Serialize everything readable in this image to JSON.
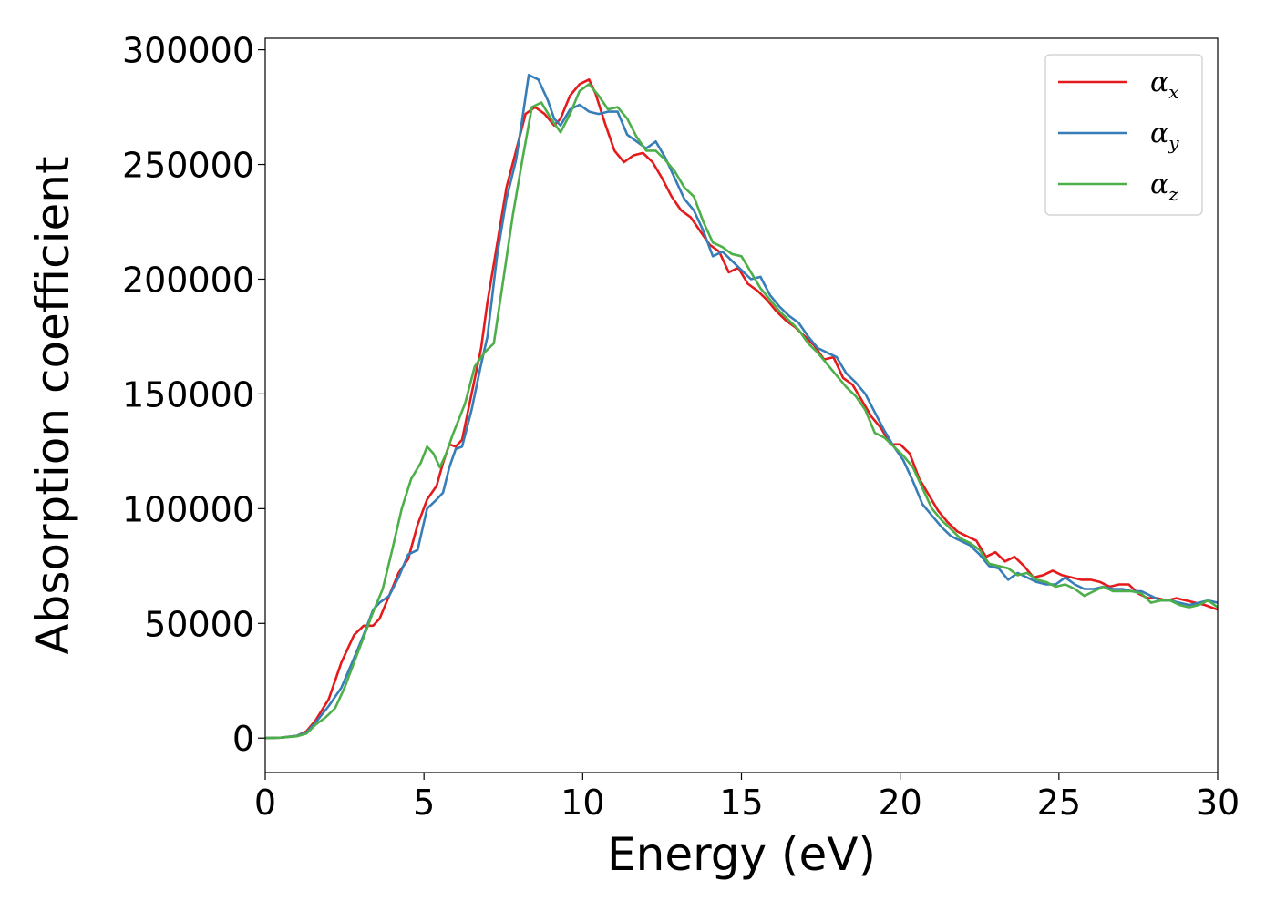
{
  "chart_data": {
    "type": "line",
    "title": "",
    "xlabel": "Energy (eV)",
    "ylabel": "Absorption coefficient",
    "xlim": [
      0,
      30
    ],
    "ylim": [
      -15000,
      305000
    ],
    "xticks": [
      0,
      5,
      10,
      15,
      20,
      25,
      30
    ],
    "xtick_labels": [
      "0",
      "5",
      "10",
      "15",
      "20",
      "25",
      "30"
    ],
    "yticks": [
      0,
      50000,
      100000,
      150000,
      200000,
      250000,
      300000
    ],
    "ytick_labels": [
      "0",
      "50000",
      "100000",
      "150000",
      "200000",
      "250000",
      "300000"
    ],
    "grid": false,
    "legend_position": "top-right",
    "series": [
      {
        "name": "α",
        "subscript": "x",
        "color": "#e41a1c",
        "x": [
          0,
          0.5,
          1.0,
          1.3,
          1.6,
          2.0,
          2.4,
          2.8,
          3.1,
          3.4,
          3.6,
          3.9,
          4.2,
          4.5,
          4.8,
          5.1,
          5.4,
          5.6,
          5.8,
          6.0,
          6.2,
          6.5,
          6.8,
          7.0,
          7.3,
          7.6,
          7.9,
          8.2,
          8.5,
          8.8,
          9.1,
          9.3,
          9.6,
          9.9,
          10.2,
          10.4,
          10.7,
          11.0,
          11.3,
          11.6,
          11.9,
          12.2,
          12.5,
          12.8,
          13.1,
          13.4,
          13.7,
          14.0,
          14.3,
          14.6,
          14.9,
          15.2,
          15.5,
          15.8,
          16.1,
          16.4,
          16.7,
          17.0,
          17.3,
          17.6,
          17.9,
          18.2,
          18.5,
          18.8,
          19.1,
          19.4,
          19.7,
          20.0,
          20.3,
          20.6,
          20.9,
          21.2,
          21.5,
          21.8,
          22.1,
          22.4,
          22.7,
          23.0,
          23.3,
          23.6,
          23.9,
          24.2,
          24.5,
          24.8,
          25.1,
          25.4,
          25.7,
          26.0,
          26.3,
          26.6,
          26.9,
          27.2,
          27.5,
          27.8,
          28.1,
          28.4,
          28.7,
          29.0,
          29.3,
          29.6,
          30.0
        ],
        "y": [
          0,
          200,
          1000,
          3000,
          8000,
          17000,
          33000,
          45000,
          49000,
          49000,
          52000,
          62000,
          72000,
          78000,
          93000,
          104000,
          110000,
          120000,
          128000,
          127000,
          130000,
          150000,
          170000,
          190000,
          215000,
          240000,
          256000,
          272000,
          275000,
          272000,
          267000,
          270000,
          280000,
          285000,
          287000,
          281000,
          268000,
          256000,
          251000,
          254000,
          255000,
          251000,
          244000,
          236000,
          230000,
          227000,
          221000,
          215000,
          212000,
          203000,
          205000,
          198000,
          195000,
          191000,
          186000,
          182000,
          179000,
          175000,
          171000,
          165000,
          166000,
          157000,
          154000,
          147000,
          140000,
          135000,
          128000,
          128000,
          124000,
          113000,
          106000,
          99000,
          94000,
          90000,
          88000,
          86000,
          79000,
          81000,
          77000,
          79000,
          75000,
          70000,
          71000,
          73000,
          71000,
          70000,
          69000,
          69000,
          68000,
          66000,
          67000,
          67000,
          63000,
          61000,
          61000,
          60000,
          61000,
          60000,
          59000,
          58000,
          56000
        ]
      },
      {
        "name": "α",
        "subscript": "y",
        "color": "#377eb8",
        "x": [
          0,
          0.5,
          1.0,
          1.3,
          1.6,
          2.0,
          2.4,
          2.8,
          3.1,
          3.4,
          3.6,
          3.9,
          4.2,
          4.5,
          4.8,
          5.1,
          5.4,
          5.6,
          5.8,
          6.0,
          6.2,
          6.5,
          6.8,
          7.0,
          7.3,
          7.6,
          7.9,
          8.1,
          8.3,
          8.6,
          8.9,
          9.1,
          9.3,
          9.6,
          9.9,
          10.2,
          10.5,
          10.8,
          11.1,
          11.4,
          11.7,
          12.0,
          12.3,
          12.6,
          12.9,
          13.2,
          13.5,
          13.8,
          14.1,
          14.4,
          14.7,
          15.0,
          15.3,
          15.6,
          15.9,
          16.2,
          16.5,
          16.8,
          17.1,
          17.4,
          17.7,
          18.0,
          18.3,
          18.6,
          18.9,
          19.2,
          19.5,
          19.8,
          20.1,
          20.4,
          20.7,
          21.0,
          21.3,
          21.6,
          21.9,
          22.2,
          22.5,
          22.8,
          23.1,
          23.4,
          23.7,
          24.0,
          24.3,
          24.6,
          24.9,
          25.2,
          25.5,
          25.8,
          26.1,
          26.4,
          26.7,
          27.0,
          27.3,
          27.6,
          27.9,
          28.2,
          28.5,
          28.8,
          29.1,
          29.4,
          29.7,
          30.0
        ],
        "y": [
          0,
          200,
          1000,
          2500,
          7000,
          14000,
          22000,
          35000,
          45000,
          56000,
          59000,
          62000,
          70000,
          80000,
          82000,
          100000,
          104000,
          107000,
          118000,
          126000,
          127000,
          143000,
          163000,
          175000,
          210000,
          235000,
          252000,
          270000,
          289000,
          287000,
          278000,
          270000,
          267000,
          274000,
          276000,
          273000,
          272000,
          273000,
          273000,
          263000,
          260000,
          257000,
          260000,
          253000,
          244000,
          235000,
          230000,
          221000,
          210000,
          212000,
          208000,
          204000,
          200000,
          201000,
          193000,
          188000,
          184000,
          181000,
          175000,
          170000,
          168000,
          166000,
          159000,
          155000,
          150000,
          142000,
          134000,
          127000,
          121000,
          112000,
          102000,
          97000,
          92000,
          88000,
          86000,
          84000,
          80000,
          75000,
          74000,
          69000,
          72000,
          70000,
          68000,
          67000,
          67000,
          70000,
          67000,
          65000,
          65000,
          66000,
          65000,
          65000,
          64000,
          64000,
          62000,
          60000,
          60000,
          59000,
          58000,
          59000,
          60000,
          59000
        ]
      },
      {
        "name": "α",
        "subscript": "z",
        "color": "#4daf4a",
        "x": [
          0,
          0.5,
          1.0,
          1.3,
          1.6,
          1.9,
          2.2,
          2.5,
          2.8,
          3.1,
          3.4,
          3.7,
          4.0,
          4.3,
          4.6,
          4.9,
          5.1,
          5.3,
          5.5,
          5.7,
          5.9,
          6.1,
          6.3,
          6.6,
          6.9,
          7.2,
          7.5,
          7.8,
          8.1,
          8.4,
          8.7,
          9.0,
          9.3,
          9.6,
          9.9,
          10.2,
          10.5,
          10.8,
          11.1,
          11.4,
          11.7,
          12.0,
          12.3,
          12.6,
          12.9,
          13.2,
          13.5,
          13.8,
          14.1,
          14.4,
          14.7,
          15.0,
          15.3,
          15.6,
          15.9,
          16.2,
          16.5,
          16.8,
          17.1,
          17.4,
          17.7,
          18.0,
          18.3,
          18.6,
          18.9,
          19.2,
          19.5,
          19.8,
          20.1,
          20.4,
          20.7,
          21.0,
          21.3,
          21.6,
          21.9,
          22.2,
          22.5,
          22.8,
          23.1,
          23.4,
          23.7,
          24.0,
          24.3,
          24.6,
          24.9,
          25.2,
          25.5,
          25.8,
          26.1,
          26.4,
          26.7,
          27.0,
          27.3,
          27.6,
          27.9,
          28.2,
          28.5,
          28.8,
          29.1,
          29.4,
          29.7,
          30.0
        ],
        "y": [
          0,
          200,
          800,
          2000,
          6000,
          9000,
          13000,
          22000,
          33000,
          44000,
          55000,
          65000,
          82000,
          100000,
          113000,
          120000,
          127000,
          124000,
          118000,
          124000,
          132000,
          139000,
          146000,
          162000,
          168000,
          172000,
          200000,
          228000,
          252000,
          275000,
          277000,
          270000,
          264000,
          272000,
          282000,
          285000,
          280000,
          274000,
          275000,
          270000,
          262000,
          256000,
          256000,
          252000,
          247000,
          240000,
          236000,
          225000,
          216000,
          214000,
          211000,
          210000,
          203000,
          196000,
          191000,
          186000,
          182000,
          178000,
          172000,
          168000,
          163000,
          158000,
          153000,
          149000,
          143000,
          133000,
          131000,
          127000,
          123000,
          118000,
          109000,
          100000,
          95000,
          91000,
          87000,
          85000,
          82000,
          76000,
          75000,
          74000,
          71000,
          72000,
          69000,
          68000,
          66000,
          67000,
          65000,
          62000,
          64000,
          66000,
          64000,
          64000,
          64000,
          63000,
          59000,
          60000,
          60000,
          58000,
          57000,
          58000,
          60000,
          57000
        ]
      }
    ]
  }
}
